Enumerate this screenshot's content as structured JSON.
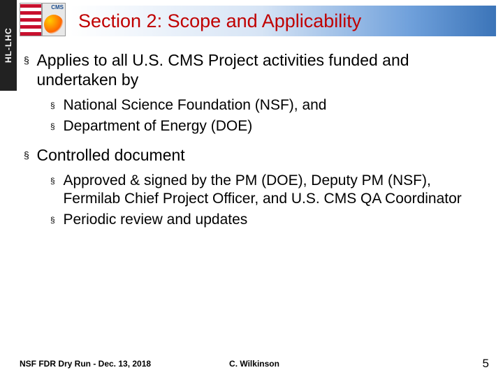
{
  "header": {
    "sidebar_label": "HL-LHC",
    "cms_label": "CMS",
    "title": "Section 2: Scope and Applicability",
    "title_color": "#c00000",
    "gradient_start": "#ffffff",
    "gradient_end": "#3b74b8"
  },
  "bullets": {
    "l1_glyph": "§",
    "l2_glyph": "§",
    "items": [
      {
        "text": "Applies to all U.S. CMS Project activities funded and undertaken by",
        "sub": [
          "National Science Foundation (NSF), and",
          "Department of Energy (DOE)"
        ]
      },
      {
        "text": "Controlled document",
        "sub": [
          "Approved & signed by the PM (DOE), Deputy PM (NSF), Fermilab Chief Project Officer, and U.S. CMS QA Coordinator",
          "Periodic review and updates"
        ]
      }
    ]
  },
  "footer": {
    "left": "NSF FDR Dry Run - Dec. 13, 2018",
    "center": "C. Wilkinson",
    "page": "5"
  },
  "style": {
    "body_font_size_l1": 23,
    "body_font_size_l2": 21,
    "text_color": "#000000",
    "background_color": "#ffffff"
  }
}
